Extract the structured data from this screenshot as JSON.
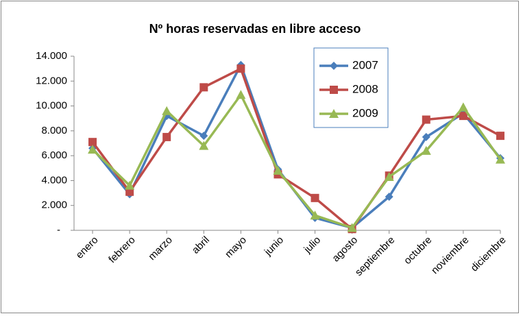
{
  "chart_data": {
    "type": "line",
    "title": "Nº horas reservadas en libre acceso",
    "categories": [
      "enero",
      "febrero",
      "marzo",
      "abril",
      "mayo",
      "junio",
      "julio",
      "agosto",
      "septiembre",
      "octubre",
      "noviembre",
      "diciembre"
    ],
    "series": [
      {
        "name": "2007",
        "color": "#4a7ebb",
        "marker": "diamond",
        "values": [
          6600,
          2900,
          9200,
          7600,
          13300,
          4900,
          1000,
          200,
          2700,
          7500,
          9400,
          5800
        ]
      },
      {
        "name": "2008",
        "color": "#be4b48",
        "marker": "square",
        "values": [
          7100,
          3100,
          7500,
          11500,
          13000,
          4500,
          2600,
          100,
          4400,
          8900,
          9200,
          7600
        ]
      },
      {
        "name": "2009",
        "color": "#98b954",
        "marker": "triangle",
        "values": [
          6500,
          3600,
          9600,
          6800,
          10900,
          4800,
          1200,
          200,
          4300,
          6400,
          9900,
          5700
        ]
      }
    ],
    "ylim": [
      0,
      14000
    ],
    "yticks": [
      {
        "value": 0,
        "label": "-"
      },
      {
        "value": 2000,
        "label": "2.000"
      },
      {
        "value": 4000,
        "label": "4.000"
      },
      {
        "value": 6000,
        "label": "6.000"
      },
      {
        "value": 8000,
        "label": "8.000"
      },
      {
        "value": 10000,
        "label": "10.000"
      },
      {
        "value": 12000,
        "label": "12.000"
      },
      {
        "value": 14000,
        "label": "14.000"
      }
    ],
    "grid": false,
    "legend": "top-right"
  }
}
